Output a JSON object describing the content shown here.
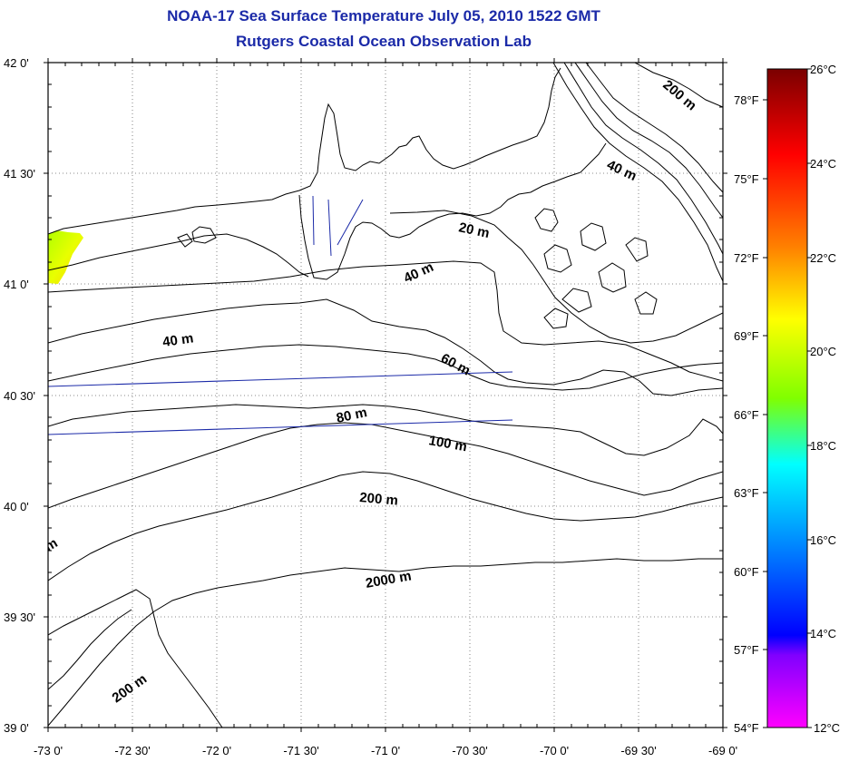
{
  "title": "NOAA-17 Sea Surface Temperature July 05, 2010 1522 GMT",
  "subtitle": "Rutgers Coastal Ocean Observation Lab",
  "map": {
    "lon_range": [
      -73,
      -69
    ],
    "lat_range": [
      39,
      42
    ],
    "lon_ticks": [
      "-73 0'",
      "-72 30'",
      "-72 0'",
      "-71 30'",
      "-71 0'",
      "-70 30'",
      "-70 0'",
      "-69 30'",
      "-69 0'"
    ],
    "lat_ticks": [
      "42 0'",
      "41 30'",
      "41 0'",
      "40 30'",
      "40 0'",
      "39 30'",
      "39 0'"
    ],
    "grid": "dotted",
    "contour_labels": [
      "200 m",
      "40 m",
      "20 m",
      "40 m",
      "40 m",
      "60 m",
      "80 m",
      "100 m",
      "200 m",
      "2000 m",
      "200 m",
      "m"
    ]
  },
  "colorbar": {
    "celsius_labels": [
      "26°C",
      "24°C",
      "22°C",
      "20°C",
      "18°C",
      "16°C",
      "14°C",
      "12°C"
    ],
    "fahrenheit_labels": [
      "78°F",
      "75°F",
      "72°F",
      "69°F",
      "66°F",
      "63°F",
      "60°F",
      "57°F",
      "54°F"
    ],
    "colors": [
      "#7a0000",
      "#ff0000",
      "#ff8000",
      "#ffff00",
      "#80ff00",
      "#00ffff",
      "#0080ff",
      "#0000ff",
      "#8000ff",
      "#ff00ff"
    ]
  }
}
